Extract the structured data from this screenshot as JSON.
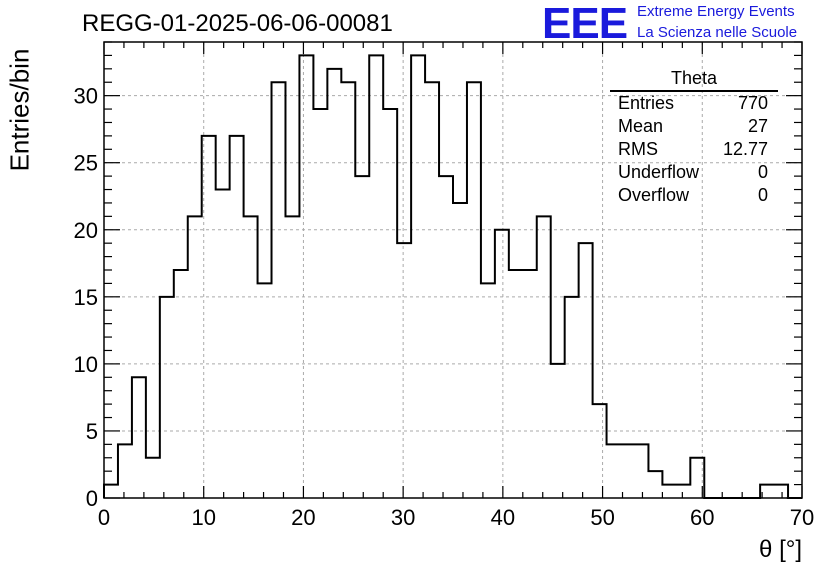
{
  "header": {
    "run_title": "REGG-01-2025-06-06-00081",
    "logo_text": "EEE",
    "logo_line1": "Extreme Energy Events",
    "logo_line2": "La Scienza nelle Scuole",
    "logo_color": "#1a1adc"
  },
  "stats": {
    "title": "Theta",
    "rows": [
      {
        "label": "Entries",
        "value": "770"
      },
      {
        "label": "Mean",
        "value": "27"
      },
      {
        "label": "RMS",
        "value": "12.77"
      },
      {
        "label": "Underflow",
        "value": "0"
      },
      {
        "label": "Overflow",
        "value": "0"
      }
    ]
  },
  "chart_data": {
    "type": "histogram",
    "xlabel": "θ [°]",
    "ylabel": "Entries/bin",
    "xlim": [
      0,
      70
    ],
    "ylim": [
      0,
      34
    ],
    "bin_width": 1.4,
    "grid": true,
    "x_ticks": [
      0,
      10,
      20,
      30,
      40,
      50,
      60,
      70
    ],
    "y_ticks": [
      0,
      5,
      10,
      15,
      20,
      25,
      30
    ],
    "values": [
      1,
      4,
      9,
      3,
      15,
      17,
      21,
      27,
      23,
      27,
      21,
      16,
      31,
      21,
      33,
      29,
      32,
      31,
      24,
      33,
      29,
      19,
      33,
      31,
      24,
      22,
      31,
      16,
      20,
      17,
      17,
      21,
      10,
      15,
      19,
      7,
      4,
      4,
      4,
      2,
      1,
      1,
      3,
      0,
      0,
      0,
      0,
      1,
      1,
      0
    ]
  }
}
